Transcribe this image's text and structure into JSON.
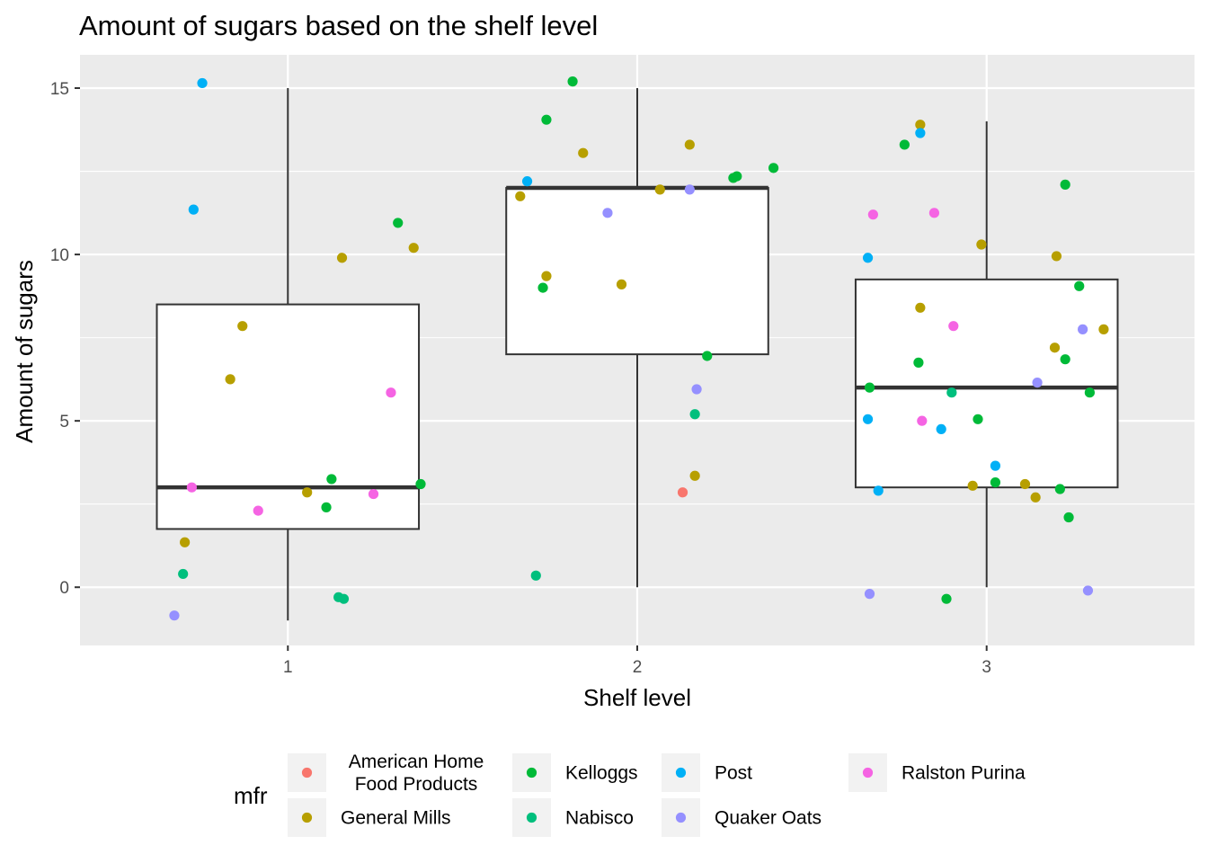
{
  "chart_data": {
    "type": "boxplot-jitter",
    "title": "Amount of sugars based on the shelf level",
    "xlabel": "Shelf level",
    "ylabel": "Amount of sugars",
    "categories": [
      "1",
      "2",
      "3"
    ],
    "x_ticks": [
      "1",
      "2",
      "3"
    ],
    "y_ticks": [
      0,
      5,
      10,
      15
    ],
    "xlim": [
      0.405,
      3.595
    ],
    "ylim": [
      -1.75,
      16.0
    ],
    "grid": true,
    "legend": {
      "title": "mfr",
      "position": "bottom",
      "entries": [
        {
          "name": "American Home Food Products",
          "lines": [
            "American Home",
            "Food Products"
          ],
          "color": "#F8766D"
        },
        {
          "name": "General Mills",
          "lines": [
            "General Mills"
          ],
          "color": "#B79F00"
        },
        {
          "name": "Kelloggs",
          "lines": [
            "Kelloggs"
          ],
          "color": "#00BA38"
        },
        {
          "name": "Nabisco",
          "lines": [
            "Nabisco"
          ],
          "color": "#00BF7D"
        },
        {
          "name": "Post",
          "lines": [
            "Post"
          ],
          "color": "#00B0F6"
        },
        {
          "name": "Quaker Oats",
          "lines": [
            "Quaker Oats"
          ],
          "color": "#9590FF"
        },
        {
          "name": "Ralston Purina",
          "lines": [
            "Ralston Purina"
          ],
          "color": "#F564E3"
        }
      ]
    },
    "boxes": [
      {
        "x": 1,
        "whisker_low": -1,
        "q1": 1.75,
        "median": 3,
        "q3": 8.5,
        "whisker_high": 15
      },
      {
        "x": 2,
        "whisker_low": 0,
        "q1": 7,
        "median": 12,
        "q3": 12,
        "whisker_high": 15
      },
      {
        "x": 3,
        "whisker_low": 0,
        "q1": 3,
        "median": 6,
        "q3": 9.25,
        "whisker_high": 14
      }
    ],
    "points": [
      {
        "x": 0.705,
        "y": 1.35,
        "mfr": "General Mills"
      },
      {
        "x": 0.835,
        "y": 6.25,
        "mfr": "General Mills"
      },
      {
        "x": 0.87,
        "y": 7.85,
        "mfr": "General Mills"
      },
      {
        "x": 1.055,
        "y": 2.85,
        "mfr": "General Mills"
      },
      {
        "x": 1.155,
        "y": 9.9,
        "mfr": "General Mills"
      },
      {
        "x": 1.36,
        "y": 10.2,
        "mfr": "General Mills"
      },
      {
        "x": 1.125,
        "y": 3.25,
        "mfr": "Kelloggs"
      },
      {
        "x": 1.11,
        "y": 2.4,
        "mfr": "Kelloggs"
      },
      {
        "x": 1.315,
        "y": 10.95,
        "mfr": "Kelloggs"
      },
      {
        "x": 1.38,
        "y": 3.1,
        "mfr": "Kelloggs"
      },
      {
        "x": 0.7,
        "y": 0.4,
        "mfr": "Nabisco"
      },
      {
        "x": 1.145,
        "y": -0.3,
        "mfr": "Nabisco"
      },
      {
        "x": 1.16,
        "y": -0.35,
        "mfr": "Nabisco"
      },
      {
        "x": 0.755,
        "y": 15.15,
        "mfr": "Post"
      },
      {
        "x": 0.73,
        "y": 11.35,
        "mfr": "Post"
      },
      {
        "x": 0.675,
        "y": -0.85,
        "mfr": "Quaker Oats"
      },
      {
        "x": 0.725,
        "y": 3.0,
        "mfr": "Ralston Purina"
      },
      {
        "x": 0.915,
        "y": 2.3,
        "mfr": "Ralston Purina"
      },
      {
        "x": 1.245,
        "y": 2.8,
        "mfr": "Ralston Purina"
      },
      {
        "x": 1.295,
        "y": 5.85,
        "mfr": "Ralston Purina"
      },
      {
        "x": 2.13,
        "y": 2.85,
        "mfr": "American Home Food Products"
      },
      {
        "x": 1.665,
        "y": 11.75,
        "mfr": "General Mills"
      },
      {
        "x": 1.74,
        "y": 9.35,
        "mfr": "General Mills"
      },
      {
        "x": 1.845,
        "y": 13.05,
        "mfr": "General Mills"
      },
      {
        "x": 1.955,
        "y": 9.1,
        "mfr": "General Mills"
      },
      {
        "x": 2.065,
        "y": 11.95,
        "mfr": "General Mills"
      },
      {
        "x": 2.15,
        "y": 13.3,
        "mfr": "General Mills"
      },
      {
        "x": 2.165,
        "y": 3.35,
        "mfr": "General Mills"
      },
      {
        "x": 1.73,
        "y": 9.0,
        "mfr": "Kelloggs"
      },
      {
        "x": 1.74,
        "y": 14.05,
        "mfr": "Kelloggs"
      },
      {
        "x": 1.815,
        "y": 15.2,
        "mfr": "Kelloggs"
      },
      {
        "x": 2.2,
        "y": 6.95,
        "mfr": "Kelloggs"
      },
      {
        "x": 2.275,
        "y": 12.3,
        "mfr": "Kelloggs"
      },
      {
        "x": 2.285,
        "y": 12.35,
        "mfr": "Kelloggs"
      },
      {
        "x": 2.39,
        "y": 12.6,
        "mfr": "Kelloggs"
      },
      {
        "x": 1.71,
        "y": 0.35,
        "mfr": "Nabisco"
      },
      {
        "x": 2.165,
        "y": 5.2,
        "mfr": "Nabisco"
      },
      {
        "x": 1.685,
        "y": 12.2,
        "mfr": "Post"
      },
      {
        "x": 1.915,
        "y": 11.25,
        "mfr": "Quaker Oats"
      },
      {
        "x": 2.15,
        "y": 11.95,
        "mfr": "Quaker Oats"
      },
      {
        "x": 2.17,
        "y": 5.95,
        "mfr": "Quaker Oats"
      },
      {
        "x": 2.81,
        "y": 13.9,
        "mfr": "General Mills"
      },
      {
        "x": 2.81,
        "y": 8.4,
        "mfr": "General Mills"
      },
      {
        "x": 2.985,
        "y": 10.3,
        "mfr": "General Mills"
      },
      {
        "x": 2.96,
        "y": 3.05,
        "mfr": "General Mills"
      },
      {
        "x": 3.11,
        "y": 3.1,
        "mfr": "General Mills"
      },
      {
        "x": 3.14,
        "y": 2.7,
        "mfr": "General Mills"
      },
      {
        "x": 3.2,
        "y": 9.95,
        "mfr": "General Mills"
      },
      {
        "x": 3.195,
        "y": 7.2,
        "mfr": "General Mills"
      },
      {
        "x": 3.335,
        "y": 7.75,
        "mfr": "General Mills"
      },
      {
        "x": 2.665,
        "y": 6.0,
        "mfr": "Kelloggs"
      },
      {
        "x": 2.765,
        "y": 13.3,
        "mfr": "Kelloggs"
      },
      {
        "x": 2.805,
        "y": 6.75,
        "mfr": "Kelloggs"
      },
      {
        "x": 2.885,
        "y": -0.35,
        "mfr": "Kelloggs"
      },
      {
        "x": 2.975,
        "y": 5.05,
        "mfr": "Kelloggs"
      },
      {
        "x": 3.025,
        "y": 3.15,
        "mfr": "Kelloggs"
      },
      {
        "x": 3.21,
        "y": 2.95,
        "mfr": "Kelloggs"
      },
      {
        "x": 3.225,
        "y": 12.1,
        "mfr": "Kelloggs"
      },
      {
        "x": 3.225,
        "y": 6.85,
        "mfr": "Kelloggs"
      },
      {
        "x": 3.235,
        "y": 2.1,
        "mfr": "Kelloggs"
      },
      {
        "x": 3.265,
        "y": 9.05,
        "mfr": "Kelloggs"
      },
      {
        "x": 3.295,
        "y": 5.85,
        "mfr": "Kelloggs"
      },
      {
        "x": 2.9,
        "y": 5.85,
        "mfr": "Nabisco"
      },
      {
        "x": 2.66,
        "y": 9.9,
        "mfr": "Post"
      },
      {
        "x": 2.66,
        "y": 5.05,
        "mfr": "Post"
      },
      {
        "x": 2.69,
        "y": 2.9,
        "mfr": "Post"
      },
      {
        "x": 2.81,
        "y": 13.65,
        "mfr": "Post"
      },
      {
        "x": 2.87,
        "y": 4.75,
        "mfr": "Post"
      },
      {
        "x": 3.025,
        "y": 3.65,
        "mfr": "Post"
      },
      {
        "x": 2.665,
        "y": -0.2,
        "mfr": "Quaker Oats"
      },
      {
        "x": 3.145,
        "y": 6.15,
        "mfr": "Quaker Oats"
      },
      {
        "x": 3.275,
        "y": 7.75,
        "mfr": "Quaker Oats"
      },
      {
        "x": 3.29,
        "y": -0.1,
        "mfr": "Quaker Oats"
      },
      {
        "x": 2.675,
        "y": 11.2,
        "mfr": "Ralston Purina"
      },
      {
        "x": 2.815,
        "y": 5.0,
        "mfr": "Ralston Purina"
      },
      {
        "x": 2.85,
        "y": 11.25,
        "mfr": "Ralston Purina"
      },
      {
        "x": 2.905,
        "y": 7.85,
        "mfr": "Ralston Purina"
      }
    ]
  }
}
